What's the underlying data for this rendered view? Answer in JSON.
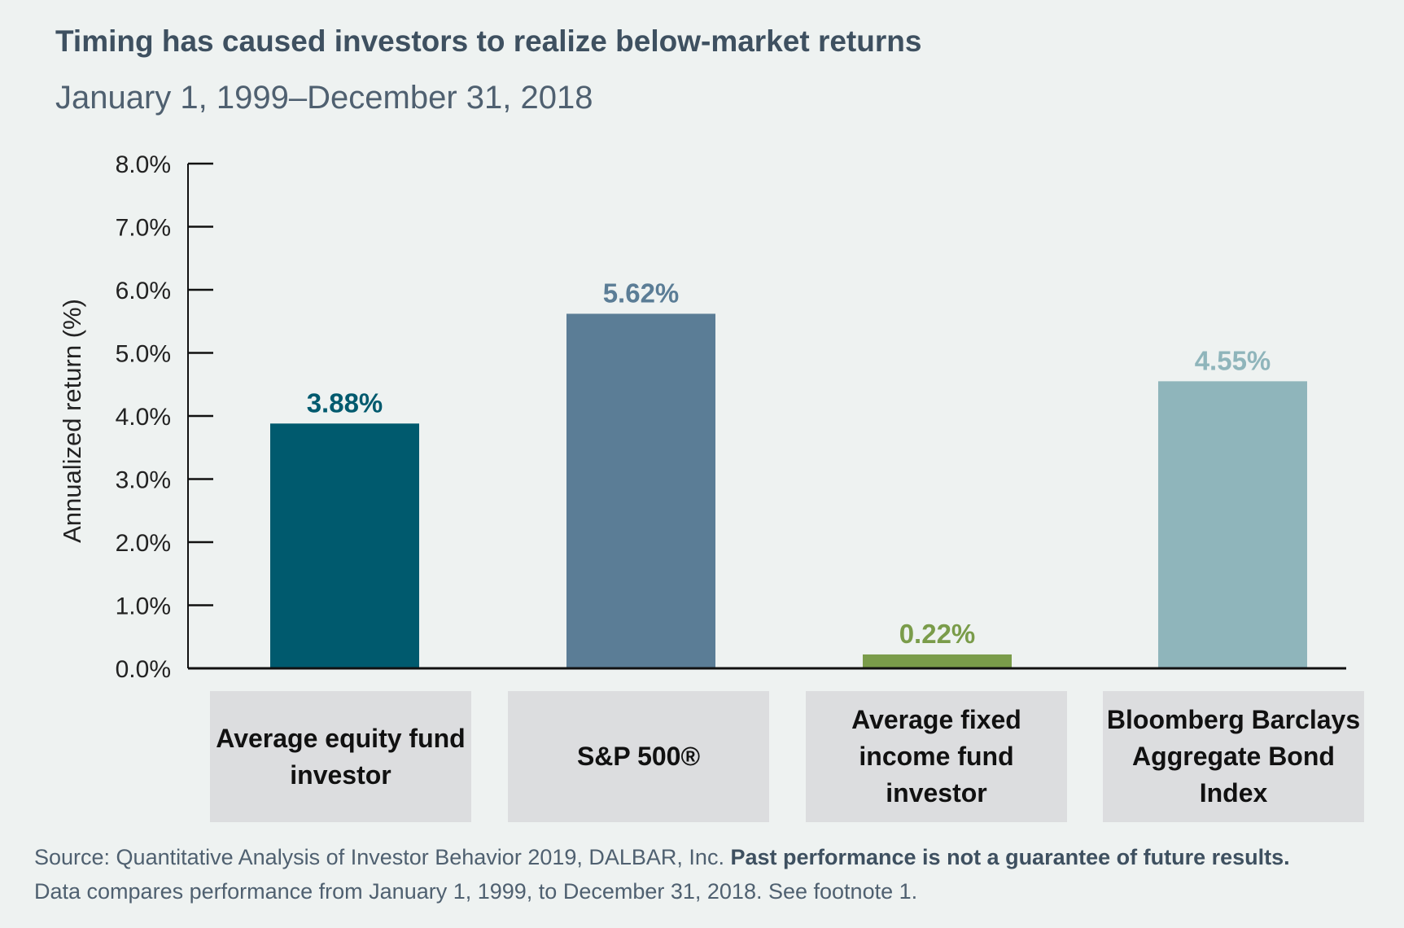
{
  "title": "Timing has caused investors to realize below-market returns",
  "subtitle": "January 1, 1999–December 31, 2018",
  "chart_data": {
    "type": "bar",
    "title": "Timing has caused investors to realize below-market returns",
    "subtitle": "January 1, 1999–December 31, 2018",
    "xlabel": "",
    "ylabel": "Annualized return (%)",
    "ylim": [
      0,
      8
    ],
    "yticks": [
      "0.0%",
      "1.0%",
      "2.0%",
      "3.0%",
      "4.0%",
      "5.0%",
      "6.0%",
      "7.0%",
      "8.0%"
    ],
    "categories": [
      "Average equity fund investor",
      "S&P 500®",
      "Average fixed income fund investor",
      "Bloomberg Barclays Aggregate Bond Index"
    ],
    "values": [
      3.88,
      5.62,
      0.22,
      4.55
    ],
    "data_labels": [
      "3.88%",
      "5.62%",
      "0.22%",
      "4.55%"
    ],
    "colors": [
      "#005a6e",
      "#5b7d96",
      "#7a9c4a",
      "#8fb5bb"
    ],
    "grid": false,
    "legend": "none"
  },
  "footnote": {
    "source": "Source: Quantitative Analysis of Investor Behavior 2019, DALBAR, Inc.",
    "disclaimer": "Past performance is not a guarantee of future results.",
    "line2": "Data compares performance from January 1, 1999, to December 31, 2018. See footnote 1."
  }
}
